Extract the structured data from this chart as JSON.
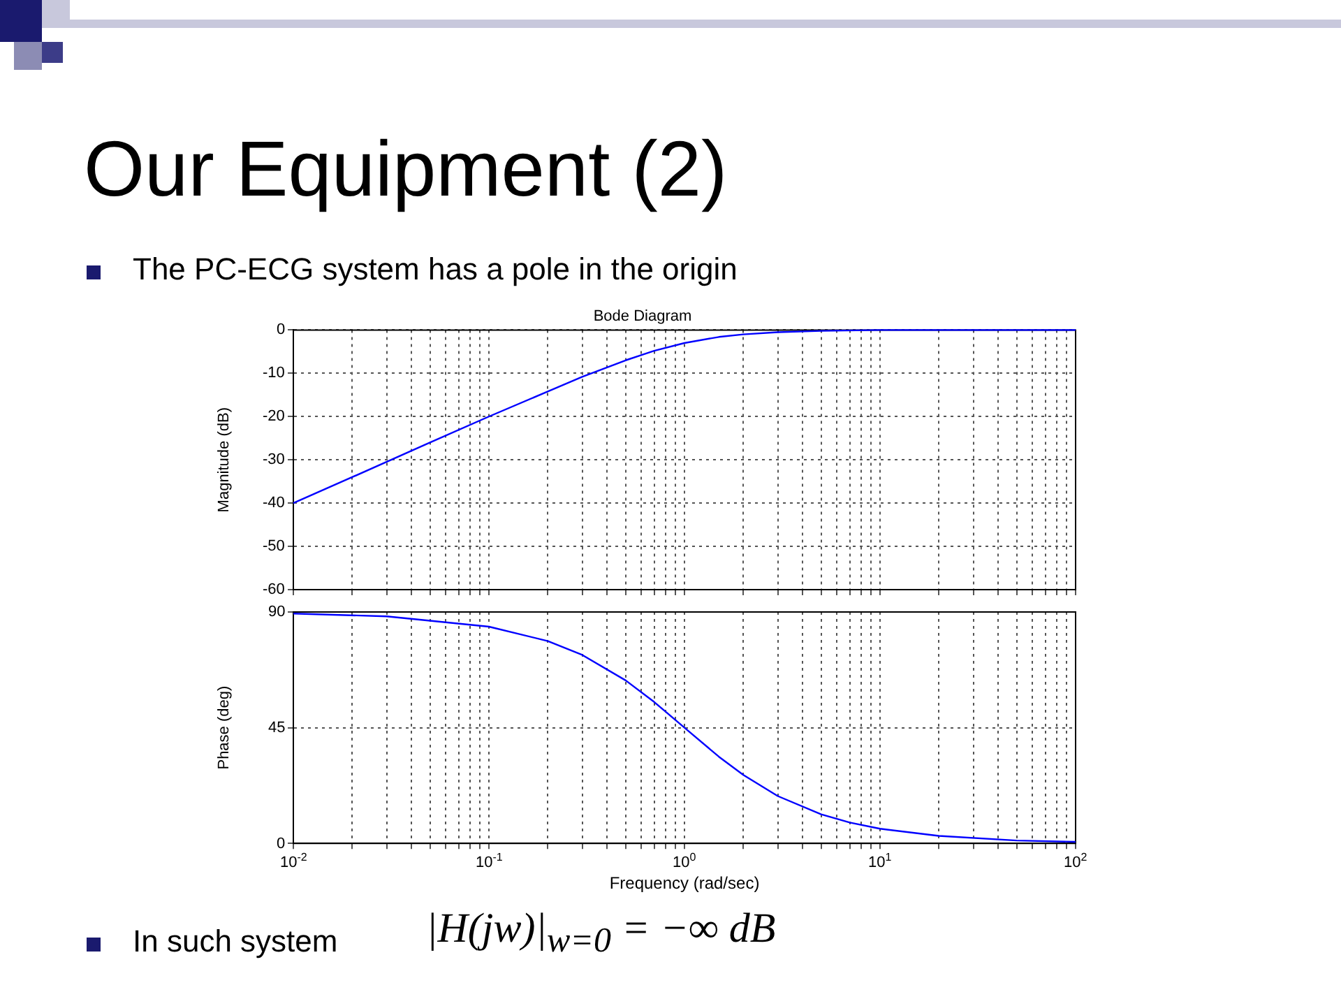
{
  "chart_data": [
    {
      "type": "line",
      "title": "Bode Diagram",
      "ylabel": "Magnitude (dB)",
      "annotations": [
        "Our Equipment (2)",
        "The PC-ECG system has a pole in the origin"
      ],
      "series": [
        {
          "color": "#0000ff",
          "x": [
            0.01,
            0.02,
            0.05,
            0.1,
            0.2,
            0.3,
            0.5,
            0.7,
            1,
            1.5,
            2,
            3,
            5,
            10,
            100
          ],
          "values": [
            -40,
            -34,
            -26,
            -20,
            -14.2,
            -10.8,
            -7,
            -4.8,
            -3,
            -1.6,
            -1,
            -0.5,
            -0.2,
            0,
            0
          ]
        }
      ],
      "log": "x",
      "xlim": [
        0.01,
        100
      ],
      "ylim": [
        -60,
        0
      ],
      "yticks": [
        -60,
        -50,
        -40,
        -30,
        -20,
        -10,
        0
      ],
      "xticks": [
        0.01,
        {
          "value": 0.02,
          "label": null
        },
        {
          "value": 0.03,
          "label": null
        },
        {
          "value": 0.04,
          "label": null
        },
        {
          "value": 0.05,
          "label": null
        },
        {
          "value": 0.06,
          "label": null
        },
        {
          "value": 0.07,
          "label": null
        },
        {
          "value": 0.08,
          "label": null
        },
        {
          "value": 0.09,
          "label": null
        },
        0.1,
        {
          "value": 0.2,
          "label": null
        },
        {
          "value": 0.3,
          "label": null
        },
        {
          "value": 0.4,
          "label": null
        },
        {
          "value": 0.5,
          "label": null
        },
        {
          "value": 0.6,
          "label": null
        },
        {
          "value": 0.7,
          "label": null
        },
        {
          "value": 0.8,
          "label": null
        },
        {
          "value": 0.9,
          "label": null
        },
        1,
        {
          "value": 2,
          "label": null
        },
        {
          "value": 3,
          "label": null
        },
        {
          "value": 4,
          "label": null
        },
        {
          "value": 5,
          "label": null
        },
        {
          "value": 6,
          "label": null
        },
        {
          "value": 7,
          "label": null
        },
        {
          "value": 8,
          "label": null
        },
        {
          "value": 9,
          "label": null
        },
        10,
        {
          "value": 20,
          "label": null
        },
        {
          "value": 30,
          "label": null
        },
        {
          "value": 40,
          "label": null
        },
        {
          "value": 50,
          "label": null
        },
        {
          "value": 60,
          "label": null
        },
        {
          "value": 70,
          "label": null
        },
        {
          "value": 80,
          "label": null
        },
        {
          "value": 90,
          "label": null
        },
        100
      ],
      "tick_labels": "y",
      "grid": true,
      "legend": false,
      "marker": "none",
      "line_style": "solid"
    },
    {
      "type": "line",
      "xlabel": "Frequency (rad/sec)",
      "ylabel": "Phase (deg)",
      "annotations": [
        "In such system",
        "|H(jw)|$_{w=0}$ = −∞ dB"
      ],
      "series": [
        {
          "color": "#0000ff",
          "x": [
            0.01,
            0.03,
            0.1,
            0.2,
            0.3,
            0.5,
            0.7,
            1,
            1.5,
            2,
            3,
            5,
            7,
            10,
            20,
            50,
            100
          ],
          "values": [
            89.4,
            88.3,
            84.3,
            78.7,
            73.3,
            63.4,
            55,
            45,
            33.7,
            26.6,
            18.4,
            11.3,
            8.1,
            5.7,
            2.9,
            1.1,
            0.6
          ]
        }
      ],
      "log": "x",
      "xlim": [
        0.01,
        100
      ],
      "ylim": [
        0,
        90
      ],
      "yticks": [
        0,
        45,
        90
      ],
      "xticks": [
        {
          "value": 0.01,
          "label": "10$^{-2}$"
        },
        {
          "value": 0.02,
          "label": null
        },
        {
          "value": 0.03,
          "label": null
        },
        {
          "value": 0.04,
          "label": null
        },
        {
          "value": 0.05,
          "label": null
        },
        {
          "value": 0.06,
          "label": null
        },
        {
          "value": 0.07,
          "label": null
        },
        {
          "value": 0.08,
          "label": null
        },
        {
          "value": 0.09,
          "label": null
        },
        {
          "value": 0.1,
          "label": "10$^{-1}$"
        },
        {
          "value": 0.2,
          "label": null
        },
        {
          "value": 0.3,
          "label": null
        },
        {
          "value": 0.4,
          "label": null
        },
        {
          "value": 0.5,
          "label": null
        },
        {
          "value": 0.6,
          "label": null
        },
        {
          "value": 0.7,
          "label": null
        },
        {
          "value": 0.8,
          "label": null
        },
        {
          "value": 0.9,
          "label": null
        },
        {
          "value": 1,
          "label": "10$^{0}$"
        },
        {
          "value": 2,
          "label": null
        },
        {
          "value": 3,
          "label": null
        },
        {
          "value": 4,
          "label": null
        },
        {
          "value": 5,
          "label": null
        },
        {
          "value": 6,
          "label": null
        },
        {
          "value": 7,
          "label": null
        },
        {
          "value": 8,
          "label": null
        },
        {
          "value": 9,
          "label": null
        },
        {
          "value": 10,
          "label": "10$^{1}$"
        },
        {
          "value": 20,
          "label": null
        },
        {
          "value": 30,
          "label": null
        },
        {
          "value": 40,
          "label": null
        },
        {
          "value": 50,
          "label": null
        },
        {
          "value": 60,
          "label": null
        },
        {
          "value": 70,
          "label": null
        },
        {
          "value": 80,
          "label": null
        },
        {
          "value": 90,
          "label": null
        },
        {
          "value": 100,
          "label": "10$^{2}$"
        }
      ],
      "grid": true,
      "legend": false,
      "marker": "none",
      "line_style": "solid"
    }
  ]
}
